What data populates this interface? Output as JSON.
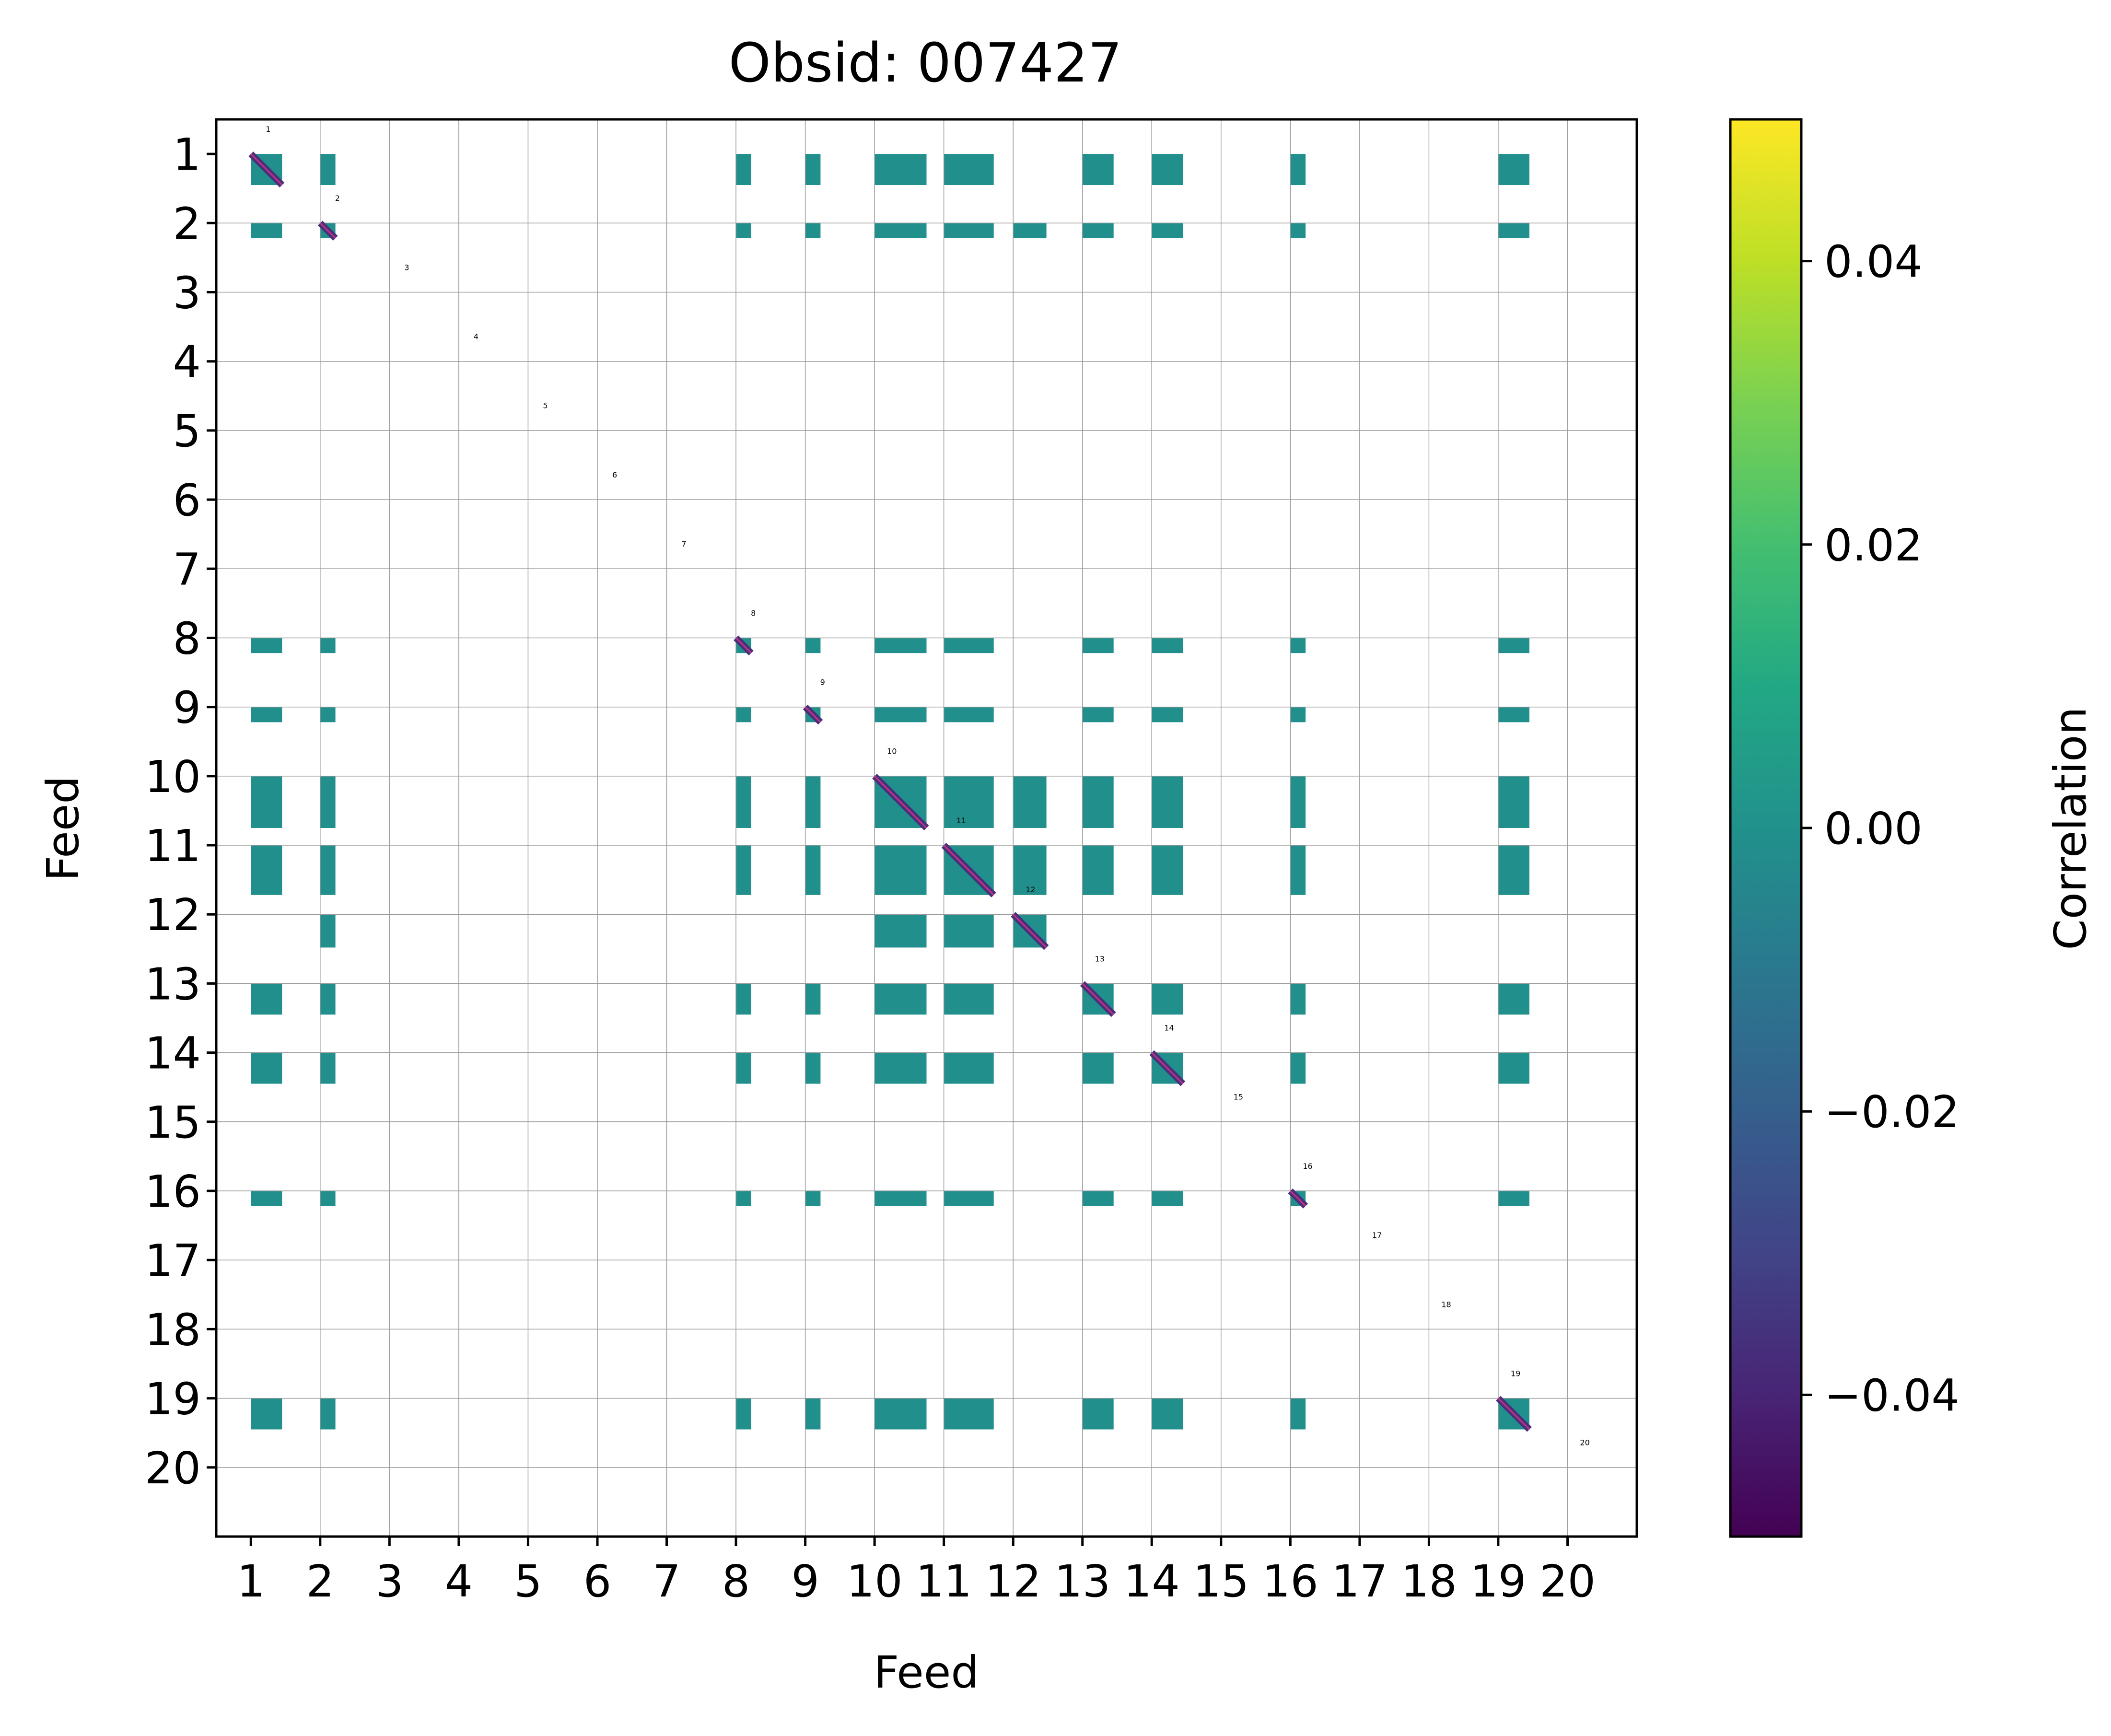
{
  "chart_data": {
    "type": "heatmap",
    "title": "Obsid: 007427",
    "xlabel": "Feed",
    "ylabel": "Feed",
    "feeds": [
      1,
      2,
      3,
      4,
      5,
      6,
      7,
      8,
      9,
      10,
      11,
      12,
      13,
      14,
      15,
      16,
      17,
      18,
      19,
      20
    ],
    "x_tick_labels": [
      "1",
      "2",
      "3",
      "4",
      "5",
      "6",
      "7",
      "8",
      "9",
      "10",
      "11",
      "12",
      "13",
      "14",
      "15",
      "16",
      "17",
      "18",
      "19",
      "20"
    ],
    "y_tick_labels": [
      "1",
      "2",
      "3",
      "4",
      "5",
      "6",
      "7",
      "8",
      "9",
      "10",
      "11",
      "12",
      "13",
      "14",
      "15",
      "16",
      "17",
      "18",
      "19",
      "20"
    ],
    "diagonal_labels": [
      "1",
      "2",
      "3",
      "4",
      "5",
      "6",
      "7",
      "8",
      "9",
      "10",
      "11",
      "12",
      "13",
      "14",
      "15",
      "16",
      "17",
      "18",
      "19",
      "20"
    ],
    "colorbar": {
      "label": "Correlation",
      "colormap": "viridis",
      "vmin": -0.05,
      "vmax": 0.05,
      "ticks": [
        0.04,
        0.02,
        0.0,
        -0.02,
        -0.04
      ],
      "tick_labels": [
        "0.04",
        "0.02",
        "0.00",
        "−0.02",
        "−0.04"
      ]
    },
    "cell_value_typical": 0.0,
    "active_feeds": [
      1,
      2,
      8,
      9,
      10,
      11,
      12,
      13,
      14,
      16,
      19
    ],
    "feed_extent_fraction": {
      "1": 0.45,
      "2": 0.22,
      "8": 0.22,
      "9": 0.22,
      "10": 0.75,
      "11": 0.72,
      "12": 0.48,
      "13": 0.45,
      "14": 0.45,
      "16": 0.22,
      "19": 0.45
    },
    "correlated_pairs": [
      [
        1,
        2
      ],
      [
        1,
        8
      ],
      [
        1,
        9
      ],
      [
        1,
        10
      ],
      [
        1,
        11
      ],
      [
        1,
        13
      ],
      [
        1,
        14
      ],
      [
        1,
        16
      ],
      [
        1,
        19
      ],
      [
        2,
        8
      ],
      [
        2,
        9
      ],
      [
        2,
        10
      ],
      [
        2,
        11
      ],
      [
        2,
        12
      ],
      [
        2,
        13
      ],
      [
        2,
        14
      ],
      [
        2,
        16
      ],
      [
        2,
        19
      ],
      [
        8,
        9
      ],
      [
        8,
        10
      ],
      [
        8,
        11
      ],
      [
        8,
        13
      ],
      [
        8,
        14
      ],
      [
        8,
        16
      ],
      [
        8,
        19
      ],
      [
        9,
        10
      ],
      [
        9,
        11
      ],
      [
        9,
        13
      ],
      [
        9,
        14
      ],
      [
        9,
        16
      ],
      [
        9,
        19
      ],
      [
        10,
        11
      ],
      [
        10,
        12
      ],
      [
        10,
        13
      ],
      [
        10,
        14
      ],
      [
        10,
        16
      ],
      [
        10,
        19
      ],
      [
        11,
        12
      ],
      [
        11,
        13
      ],
      [
        11,
        14
      ],
      [
        11,
        16
      ],
      [
        11,
        19
      ],
      [
        13,
        14
      ],
      [
        13,
        16
      ],
      [
        13,
        19
      ],
      [
        14,
        16
      ],
      [
        14,
        19
      ],
      [
        16,
        19
      ]
    ]
  },
  "colors": {
    "cell": "#21908d",
    "diagonal": "#46317e",
    "diagonal_line": "#d0307a",
    "grid": "#9a9a9a",
    "axis": "#000000"
  }
}
